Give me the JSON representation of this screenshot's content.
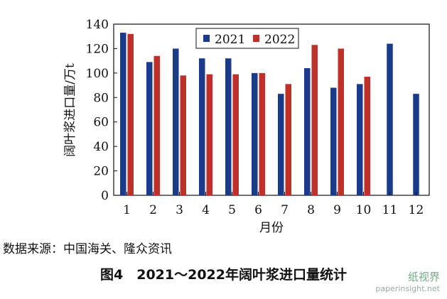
{
  "chart_data": {
    "type": "bar",
    "categories": [
      "1",
      "2",
      "3",
      "4",
      "5",
      "6",
      "7",
      "8",
      "9",
      "10",
      "11",
      "12"
    ],
    "series": [
      {
        "name": "2021",
        "color": "#1a3a8a",
        "values": [
          133,
          109,
          120,
          112,
          112,
          100,
          83,
          104,
          88,
          91,
          124,
          83
        ]
      },
      {
        "name": "2022",
        "color": "#c0302a",
        "values": [
          132,
          114,
          98,
          99,
          99,
          100,
          91,
          123,
          120,
          97,
          null,
          null
        ]
      }
    ],
    "title": "",
    "xlabel": "月份",
    "ylabel": "阔叶浆进口量/万t",
    "ylim": [
      0,
      140
    ],
    "yticks": [
      0,
      20,
      40,
      60,
      80,
      100,
      120,
      140
    ],
    "legend": "top-center",
    "grid": false
  },
  "source_text": "数据来源：中国海关、隆众资讯",
  "caption": "图4　2021～2022年阔叶浆进口量统计",
  "watermark": {
    "name": "纸视界",
    "url": "paperinsight.net"
  }
}
